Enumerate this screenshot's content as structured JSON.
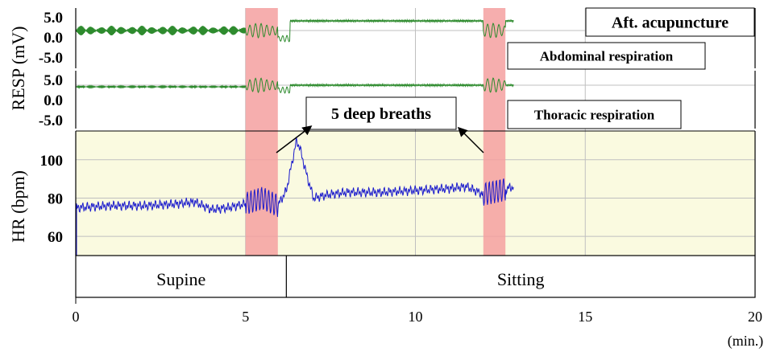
{
  "chart_data": {
    "type": "line",
    "x_axis": {
      "label": "(min.)",
      "range": [
        0,
        20
      ],
      "ticks": [
        "0",
        "5",
        "10",
        "15",
        "20"
      ]
    },
    "resp_axis": {
      "label": "RESP (mV)",
      "ticks": [
        "5.0",
        "0.0",
        "-5.0"
      ]
    },
    "hr_axis": {
      "label": "HR (bpm)",
      "ticks": [
        "100",
        "80",
        "60"
      ],
      "range": [
        50,
        115
      ]
    },
    "panel_labels": {
      "condition": "Aft. acupuncture",
      "abdominal": "Abdominal respiration",
      "thoracic": "Thoracic respiration"
    },
    "annotation": {
      "text": "5 deep breaths"
    },
    "deep_breath_intervals": [
      [
        5.0,
        5.95
      ],
      [
        12.0,
        12.65
      ]
    ],
    "phases": [
      {
        "label": "Supine",
        "range": [
          0,
          6.2
        ]
      },
      {
        "label": "Sitting",
        "range": [
          6.2,
          20
        ]
      }
    ],
    "series": [
      {
        "name": "Abdominal respiration",
        "color": "#2e8b2e",
        "x_range": [
          0,
          12.9
        ]
      },
      {
        "name": "Thoracic respiration",
        "color": "#2e8b2e",
        "x_range": [
          0,
          12.9
        ]
      },
      {
        "name": "HR",
        "color": "#1a1acc",
        "x": [
          0.0,
          1.0,
          2.0,
          3.0,
          3.5,
          4.0,
          4.5,
          5.0,
          5.5,
          5.95,
          6.2,
          6.5,
          6.6,
          6.8,
          7.0,
          7.5,
          8.0,
          9.0,
          10.0,
          11.0,
          11.5,
          12.0,
          12.5,
          12.9
        ],
        "y": [
          75,
          76,
          76,
          77,
          78,
          74,
          75,
          77,
          80,
          76,
          84,
          110,
          106,
          92,
          80,
          82,
          83,
          83,
          84,
          85,
          86,
          82,
          84,
          86
        ]
      }
    ],
    "colors": {
      "highlight": "#f4a0a0",
      "hr_panel_bg": "#fafae0",
      "grid": "#bfbfbf"
    }
  }
}
